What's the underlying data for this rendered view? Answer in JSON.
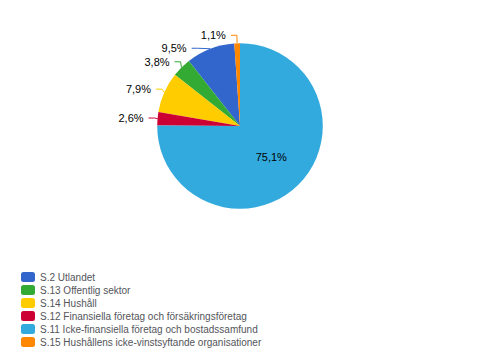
{
  "chart_data": {
    "type": "pie",
    "categories": [
      "S.2 Utlandet",
      "S.13 Offentlig sektor",
      "S.14 Hushåll",
      "S.12 Finansiella företag och försäkringsföretag",
      "S.11 Icke-finansiella företag och bostadssamfund",
      "S.15 Hushållens icke-vinstsyftande organisationer"
    ],
    "values": [
      9.5,
      3.8,
      7.9,
      2.6,
      75.1,
      1.1
    ],
    "value_labels": [
      "9,5%",
      "3,8%",
      "7,9%",
      "2,6%",
      "75,1%",
      "1,1%"
    ],
    "colors": [
      "#3366CC",
      "#33AA33",
      "#FFCC00",
      "#CC0033",
      "#33AADD",
      "#FF8800"
    ],
    "data_labels": true,
    "legend": "lower left"
  }
}
